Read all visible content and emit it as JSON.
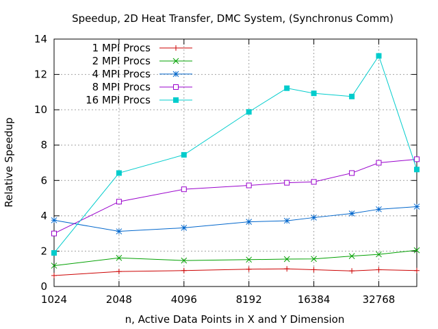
{
  "chart_data": {
    "type": "line",
    "title": "Speedup, 2D Heat Transfer, DMC System, (Synchronus Comm)",
    "xlabel": "n, Active Data Points in X and Y Dimension",
    "ylabel": "Relative Speedup",
    "x_scale": "log2",
    "xlim": [
      1024,
      49152
    ],
    "ylim": [
      0,
      14
    ],
    "x_ticks": [
      1024,
      2048,
      4096,
      8192,
      16384,
      32768
    ],
    "y_ticks": [
      0,
      2,
      4,
      6,
      8,
      10,
      12,
      14
    ],
    "x_tick_labels": [
      "1024",
      "2048",
      "4096",
      "8192",
      "16384",
      "32768"
    ],
    "y_tick_labels": [
      "0",
      "2",
      "4",
      "6",
      "8",
      "10",
      "12",
      "14"
    ],
    "grid": true,
    "legend_position": "top-left",
    "x": [
      1024,
      2048,
      4096,
      8192,
      12288,
      16384,
      24576,
      32768,
      49152
    ],
    "series": [
      {
        "name": "1 MPI Procs",
        "color": "#cc0000",
        "marker": "plus",
        "values": [
          0.62,
          0.85,
          0.9,
          0.98,
          1.0,
          0.95,
          0.88,
          0.95,
          0.9
        ]
      },
      {
        "name": "2 MPI Procs",
        "color": "#00a000",
        "marker": "cross",
        "values": [
          1.18,
          1.62,
          1.47,
          1.52,
          1.55,
          1.56,
          1.72,
          1.82,
          2.05
        ]
      },
      {
        "name": "4 MPI Procs",
        "color": "#0066cc",
        "marker": "star",
        "values": [
          3.75,
          3.12,
          3.32,
          3.66,
          3.72,
          3.9,
          4.13,
          4.37,
          4.52
        ]
      },
      {
        "name": "8 MPI Procs",
        "color": "#9900cc",
        "marker": "square-open",
        "values": [
          3.0,
          4.8,
          5.5,
          5.72,
          5.87,
          5.92,
          6.42,
          7.0,
          7.2
        ]
      },
      {
        "name": "16 MPI Procs",
        "color": "#00cccc",
        "marker": "square-filled",
        "values": [
          1.9,
          6.42,
          7.45,
          9.88,
          11.22,
          10.93,
          10.75,
          13.05,
          6.62
        ]
      }
    ]
  }
}
